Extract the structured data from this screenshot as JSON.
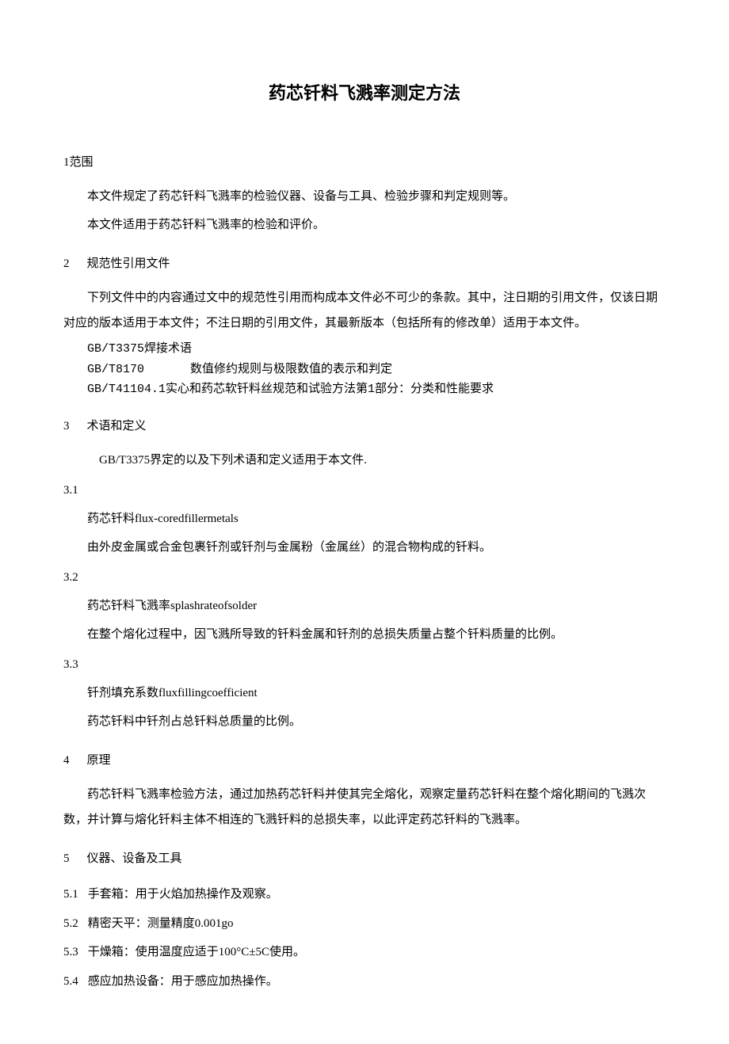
{
  "title": "药芯钎料飞溅率测定方法",
  "sections": {
    "s1": {
      "num": "1",
      "heading": "范围",
      "p1": "本文件规定了药芯钎料飞溅率的检验仪器、设备与工具、检验步骤和判定规则等。",
      "p2": "本文件适用于药芯钎料飞溅率的检验和评价。"
    },
    "s2": {
      "num": "2",
      "heading": "规范性引用文件",
      "p1": "下列文件中的内容通过文中的规范性引用而构成本文件必不可少的条款。其中，注日期的引用文件，仅该日期对应的版本适用于本文件；不注日期的引用文件，其最新版本（包括所有的修改单）适用于本文件。",
      "refs": [
        {
          "code": "GB/T3375",
          "title": "焊接术语"
        },
        {
          "code": "GB/T8170",
          "title": "数值修约规则与极限数值的表示和判定"
        },
        {
          "code": "GB/T41104.1",
          "title": "实心和药芯软钎料丝规范和试验方法第1部分：分类和性能要求"
        }
      ]
    },
    "s3": {
      "num": "3",
      "heading": "术语和定义",
      "intro": "GB/T3375界定的以及下列术语和定义适用于本文件.",
      "t1": {
        "num": "3.1",
        "term": "药芯钎料flux-coredfillermetals",
        "def": "由外皮金属或合金包裹钎剂或钎剂与金属粉（金属丝）的混合物构成的钎料。"
      },
      "t2": {
        "num": "3.2",
        "term": "药芯钎料飞溅率splashrateofsolder",
        "def": "在整个熔化过程中，因飞溅所导致的钎料金属和钎剂的总损失质量占整个钎料质量的比例。"
      },
      "t3": {
        "num": "3.3",
        "term": "钎剂填充系数fluxfillingcoefficient",
        "def": "药芯钎料中钎剂占总钎料总质量的比例。"
      }
    },
    "s4": {
      "num": "4",
      "heading": "原理",
      "p1": "药芯钎料飞溅率检验方法，通过加热药芯钎料并使其完全熔化，观察定量药芯钎料在整个熔化期间的飞溅次数，并计算与熔化钎料主体不相连的飞溅钎料的总损失率，以此评定药芯钎料的飞溅率。"
    },
    "s5": {
      "num": "5",
      "heading": "仪器、设备及工具",
      "items": [
        {
          "num": "5.1",
          "text": "手套箱：用于火焰加热操作及观察。"
        },
        {
          "num": "5.2",
          "text": "精密天平：测量精度0.001go"
        },
        {
          "num": "5.3",
          "text": "干燥箱：使用温度应适于100°C±5C使用。"
        },
        {
          "num": "5.4",
          "text": "感应加热设备：用于感应加热操作。"
        }
      ]
    }
  }
}
